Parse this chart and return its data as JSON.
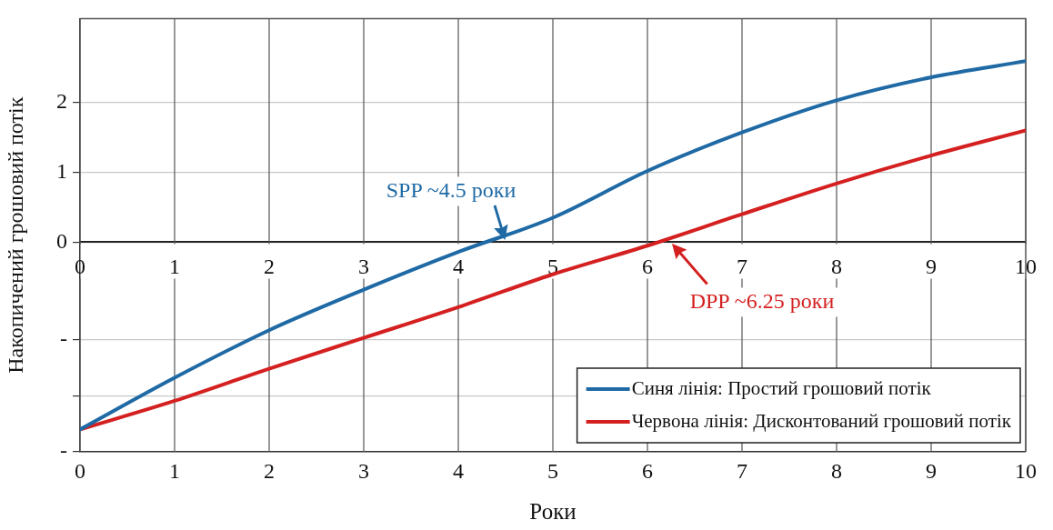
{
  "chart_data": {
    "type": "line",
    "xlabel": "Роки",
    "ylabel": "Накопичений грошовий потік",
    "x": [
      0,
      1,
      2,
      3,
      4,
      5,
      6,
      7,
      8,
      9,
      10
    ],
    "series": [
      {
        "name": "Синя лінія: Простий грошовий потік",
        "color": "#1f6aa5",
        "values": [
          -2.68,
          -1.94,
          -1.26,
          -0.68,
          -0.14,
          0.35,
          1.02,
          1.57,
          2.03,
          2.36,
          2.59
        ]
      },
      {
        "name": "Червона лінія: Дисконтований грошовий потік",
        "color": "#d42020",
        "values": [
          -2.68,
          -2.27,
          -1.81,
          -1.37,
          -0.93,
          -0.46,
          -0.05,
          0.4,
          0.84,
          1.24,
          1.6
        ]
      }
    ],
    "xlim": [
      0,
      10
    ],
    "xticks": [
      0,
      1,
      2,
      3,
      4,
      5,
      6,
      7,
      8,
      9,
      10
    ],
    "x2lim": [
      0,
      10
    ],
    "x2ticks": [
      0,
      1,
      2,
      3,
      4,
      5,
      6,
      7,
      8,
      9,
      10
    ],
    "ylim": [
      -3,
      3.2
    ],
    "yticks": [
      {
        "value": -3,
        "label": "-"
      },
      {
        "value": -2.2,
        "label": null
      },
      {
        "value": -1.4,
        "label": "-"
      },
      0,
      1,
      2
    ],
    "annotations": [
      {
        "text": "SPP ~4.5 роки",
        "x": 4.5,
        "y": 0
      },
      {
        "text": "DPP ~6.25 роки",
        "x": 6.25,
        "y": 0
      }
    ],
    "grid": true,
    "legend": "bottom right",
    "marker": "none",
    "line_style": "solid"
  }
}
